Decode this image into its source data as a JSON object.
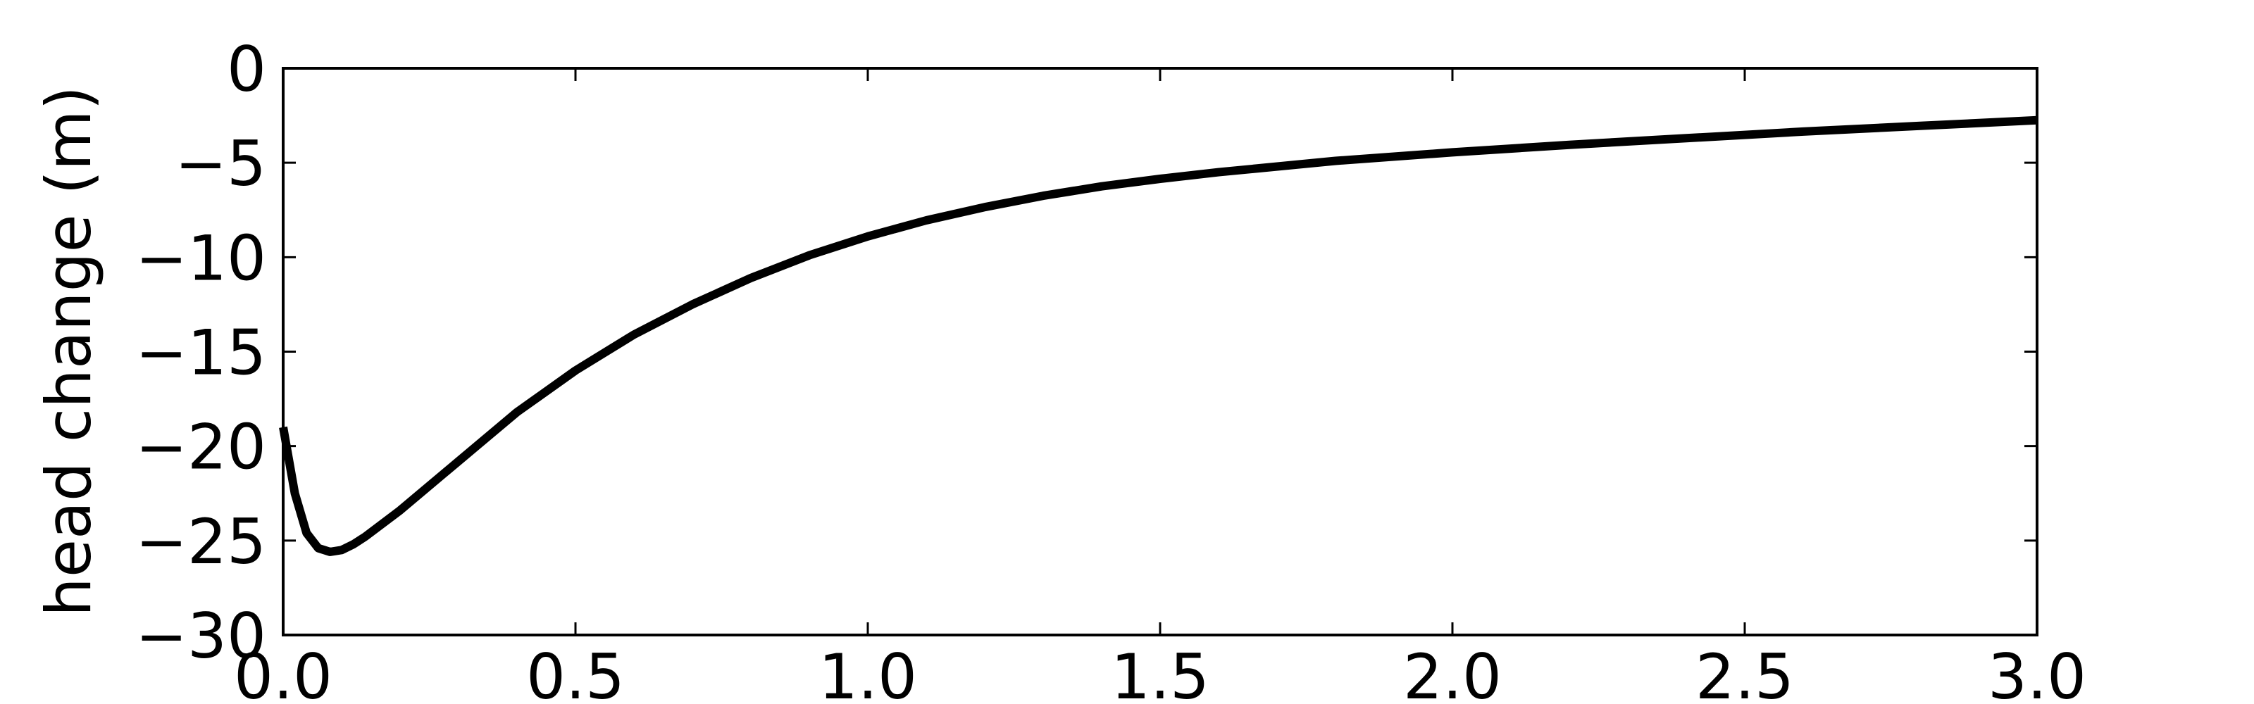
{
  "chart_data": {
    "type": "line",
    "title": "",
    "xlabel": "",
    "ylabel": "head change (m)",
    "xlim": [
      0.0,
      3.0
    ],
    "ylim": [
      -30,
      0
    ],
    "xticks": [
      0.0,
      0.5,
      1.0,
      1.5,
      2.0,
      2.5,
      3.0
    ],
    "xtick_labels": [
      "0.0",
      "0.5",
      "1.0",
      "1.5",
      "2.0",
      "2.5",
      "3.0"
    ],
    "yticks": [
      0,
      -5,
      -10,
      -15,
      -20,
      -25,
      -30
    ],
    "ytick_labels": [
      "0",
      "−5",
      "−10",
      "−15",
      "−20",
      "−25",
      "−30"
    ],
    "grid": false,
    "legend": "none",
    "series": [
      {
        "color": "#000000",
        "x": [
          0.0,
          0.02,
          0.04,
          0.06,
          0.08,
          0.1,
          0.12,
          0.14,
          0.2,
          0.3,
          0.4,
          0.5,
          0.6,
          0.7,
          0.8,
          0.9,
          1.0,
          1.1,
          1.2,
          1.3,
          1.4,
          1.5,
          1.6,
          1.8,
          2.0,
          2.2,
          2.4,
          2.6,
          2.8,
          3.0
        ],
        "y": [
          -19.0,
          -22.5,
          -24.6,
          -25.4,
          -25.6,
          -25.5,
          -25.2,
          -24.8,
          -23.4,
          -20.8,
          -18.2,
          -16.0,
          -14.1,
          -12.5,
          -11.1,
          -9.9,
          -8.9,
          -8.05,
          -7.35,
          -6.75,
          -6.25,
          -5.85,
          -5.5,
          -4.9,
          -4.45,
          -4.05,
          -3.7,
          -3.35,
          -3.05,
          -2.75
        ]
      }
    ]
  }
}
